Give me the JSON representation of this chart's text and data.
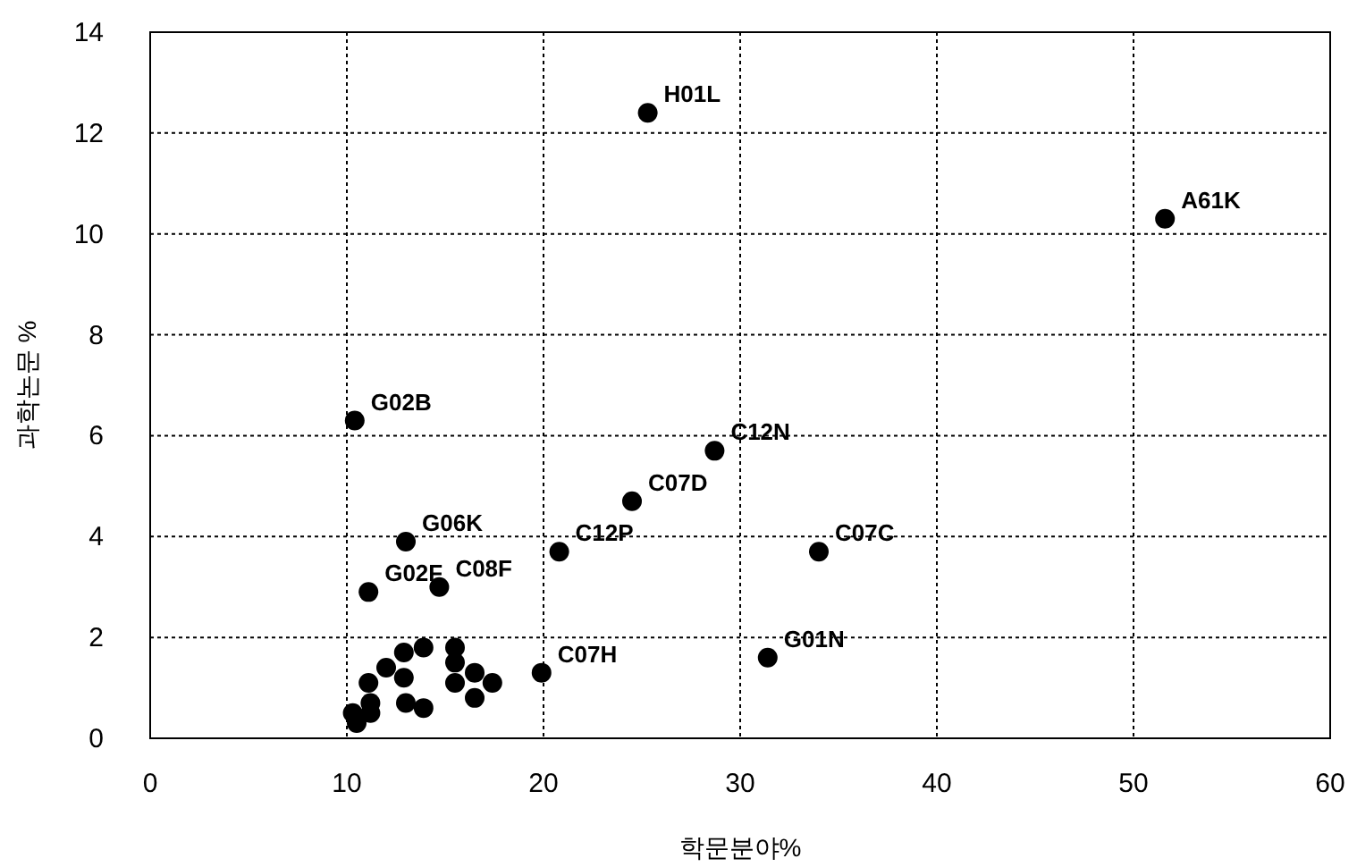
{
  "chart_data": {
    "type": "scatter",
    "xlabel": "학문분야%",
    "ylabel": "과학논문 %",
    "x": [
      25.3,
      51.6,
      28.7,
      24.5,
      20.8,
      34.0,
      31.4,
      19.9,
      10.4,
      13.0,
      14.7,
      11.1,
      13.9,
      12.9,
      12.0,
      12.9,
      15.5,
      15.5,
      15.5,
      16.5,
      17.4,
      16.5,
      13.0,
      13.9,
      11.1,
      11.2,
      10.3,
      10.5,
      11.2
    ],
    "series": [
      {
        "color": "#000000",
        "values": [
          12.4,
          10.3,
          5.7,
          4.7,
          3.7,
          3.7,
          1.6,
          1.3,
          6.3,
          3.9,
          3.0,
          2.9,
          1.8,
          1.7,
          1.4,
          1.2,
          1.8,
          1.5,
          1.1,
          1.3,
          1.1,
          0.8,
          0.7,
          0.6,
          1.1,
          0.5,
          0.5,
          0.3,
          0.7
        ]
      }
    ],
    "annotations": [
      {
        "text": "H01L",
        "x": 25.3,
        "y": 12.4
      },
      {
        "text": "A61K",
        "x": 51.6,
        "y": 10.3
      },
      {
        "text": "C12N",
        "x": 28.7,
        "y": 5.7
      },
      {
        "text": "C07D",
        "x": 24.5,
        "y": 4.7
      },
      {
        "text": "C12P",
        "x": 20.8,
        "y": 3.7
      },
      {
        "text": "C07C",
        "x": 34.0,
        "y": 3.7
      },
      {
        "text": "G01N",
        "x": 31.4,
        "y": 1.6
      },
      {
        "text": "C07H",
        "x": 19.9,
        "y": 1.3
      },
      {
        "text": "G02B",
        "x": 10.4,
        "y": 6.3
      },
      {
        "text": "G06K",
        "x": 13.0,
        "y": 3.9
      },
      {
        "text": "C08F",
        "x": 14.7,
        "y": 3.0
      },
      {
        "text": "G02F",
        "x": 11.1,
        "y": 2.9
      }
    ],
    "xlim": [
      0,
      60
    ],
    "ylim": [
      0,
      14
    ],
    "xticks": [
      0,
      10,
      20,
      30,
      40,
      50,
      60
    ],
    "yticks": [
      0,
      2,
      4,
      6,
      8,
      10,
      12,
      14
    ],
    "grid": true,
    "marker": "circle"
  }
}
